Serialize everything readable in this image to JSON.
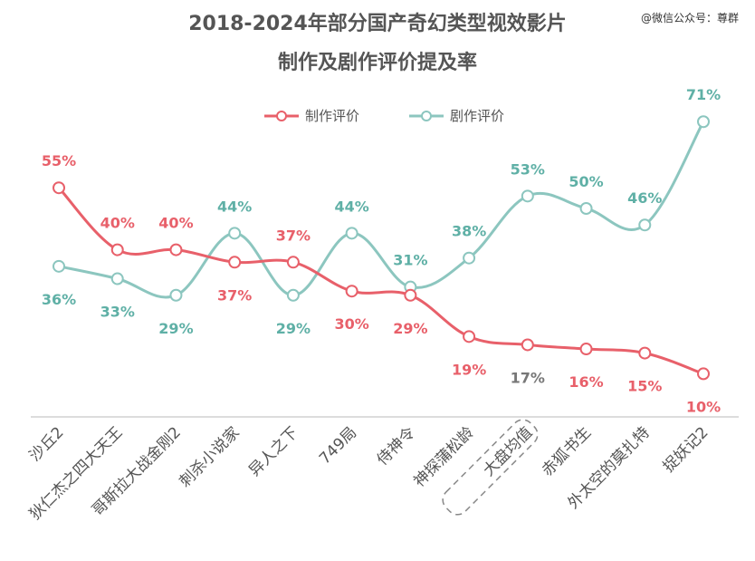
{
  "header": {
    "title_line1": "2018-2024年部分国产奇幻类型视效影片",
    "title_line2": "制作及剧作评价提及率",
    "watermark": "@微信公众号：尊群"
  },
  "chart_data": {
    "type": "line",
    "title": "2018-2024年部分国产奇幻类型视效影片 制作及剧作评价提及率",
    "categories": [
      "沙丘2",
      "狄仁杰之四大天王",
      "哥斯拉大战金刚2",
      "刺杀小说家",
      "异人之下",
      "749局",
      "侍神令",
      "神探蒲松龄",
      "大盘均值",
      "赤狐书生",
      "外太空的莫扎特",
      "捉妖记2"
    ],
    "highlight_category": "大盘均值",
    "series": [
      {
        "name": "制作评价",
        "color": "#e8606a",
        "values": [
          55,
          40,
          40,
          37,
          37,
          30,
          29,
          19,
          17,
          16,
          15,
          10
        ]
      },
      {
        "name": "剧作评价",
        "color": "#8cc6bf",
        "values": [
          36,
          33,
          29,
          44,
          29,
          44,
          31,
          38,
          53,
          50,
          46,
          71
        ]
      }
    ],
    "value_suffix": "%",
    "legend_position": "top-center",
    "grid": false
  }
}
